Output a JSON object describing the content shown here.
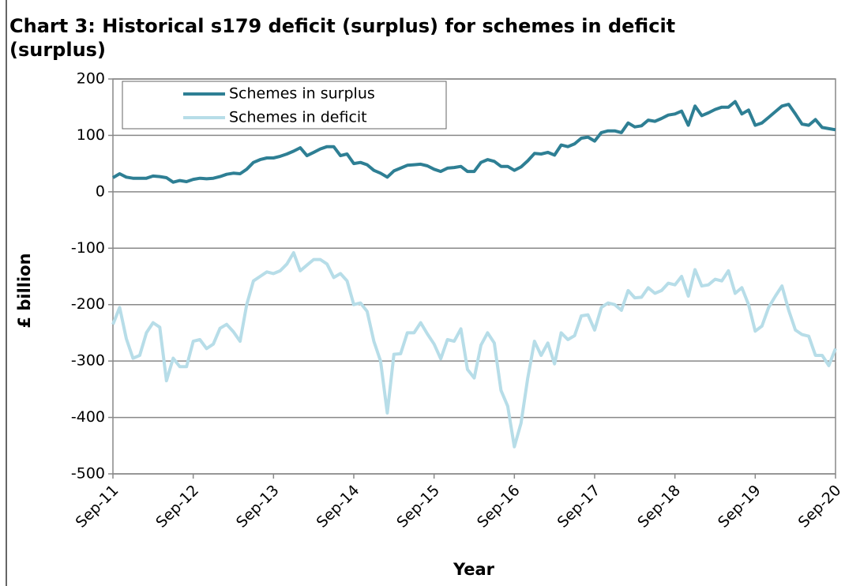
{
  "chart_data": {
    "type": "line",
    "title": "Chart 3: Historical s179 deficit (surplus) for schemes in deficit (surplus)",
    "x_label": "Year",
    "y_label": "£ billion",
    "categories": [
      "Sep-11",
      null,
      null,
      null,
      null,
      null,
      null,
      null,
      null,
      null,
      null,
      null,
      "Sep-12",
      null,
      null,
      null,
      null,
      null,
      null,
      null,
      null,
      null,
      null,
      null,
      "Sep-13",
      null,
      null,
      null,
      null,
      null,
      null,
      null,
      null,
      null,
      null,
      null,
      "Sep-14",
      null,
      null,
      null,
      null,
      null,
      null,
      null,
      null,
      null,
      null,
      null,
      "Sep-15",
      null,
      null,
      null,
      null,
      null,
      null,
      null,
      null,
      null,
      null,
      null,
      "Sep-16",
      null,
      null,
      null,
      null,
      null,
      null,
      null,
      null,
      null,
      null,
      null,
      "Sep-17",
      null,
      null,
      null,
      null,
      null,
      null,
      null,
      null,
      null,
      null,
      null,
      "Sep-18",
      null,
      null,
      null,
      null,
      null,
      null,
      null,
      null,
      null,
      null,
      null,
      "Sep-19",
      null,
      null,
      null,
      null,
      null,
      null,
      null,
      null,
      null,
      null,
      null,
      "Sep-20"
    ],
    "series": [
      {
        "name": "Schemes in surplus",
        "color": "#2e7f94",
        "values": [
          25,
          32,
          26,
          24,
          24,
          24,
          28,
          27,
          25,
          17,
          20,
          18,
          22,
          24,
          23,
          24,
          27,
          31,
          33,
          32,
          40,
          52,
          57,
          60,
          60,
          63,
          67,
          72,
          78,
          64,
          70,
          76,
          80,
          80,
          64,
          67,
          50,
          52,
          48,
          38,
          33,
          26,
          37,
          42,
          47,
          48,
          49,
          46,
          40,
          36,
          42,
          43,
          45,
          36,
          36,
          52,
          57,
          54,
          45,
          45,
          38,
          44,
          55,
          68,
          67,
          70,
          65,
          83,
          80,
          85,
          95,
          97,
          90,
          105,
          108,
          108,
          105,
          122,
          115,
          117,
          127,
          125,
          130,
          136,
          138,
          143,
          118,
          152,
          135,
          140,
          146,
          150,
          150,
          160,
          138,
          145,
          118,
          122,
          132,
          142,
          152,
          155,
          138,
          120,
          118,
          128,
          114,
          112,
          110
        ]
      },
      {
        "name": "Schemes in deficit",
        "color": "#b7dde8",
        "values": [
          -235,
          -205,
          -260,
          -295,
          -290,
          -250,
          -232,
          -240,
          -335,
          -295,
          -310,
          -310,
          -265,
          -262,
          -278,
          -270,
          -242,
          -235,
          -248,
          -265,
          -200,
          -158,
          -150,
          -142,
          -145,
          -140,
          -128,
          -108,
          -140,
          -130,
          -120,
          -120,
          -128,
          -152,
          -145,
          -158,
          -200,
          -197,
          -212,
          -265,
          -300,
          -392,
          -288,
          -287,
          -250,
          -250,
          -232,
          -252,
          -270,
          -296,
          -262,
          -265,
          -243,
          -315,
          -330,
          -272,
          -250,
          -268,
          -352,
          -380,
          -452,
          -410,
          -330,
          -265,
          -290,
          -268,
          -305,
          -250,
          -262,
          -255,
          -220,
          -218,
          -245,
          -205,
          -197,
          -200,
          -210,
          -175,
          -188,
          -187,
          -170,
          -180,
          -175,
          -162,
          -165,
          -150,
          -185,
          -138,
          -167,
          -165,
          -155,
          -158,
          -140,
          -180,
          -170,
          -200,
          -247,
          -238,
          -205,
          -185,
          -167,
          -210,
          -245,
          -253,
          -256,
          -290,
          -290,
          -308,
          -278
        ]
      }
    ],
    "ylim": [
      -500,
      200
    ],
    "yticks": [
      -500,
      -400,
      -300,
      -200,
      -100,
      0,
      100,
      200
    ],
    "grid": true,
    "legend": "upper left"
  }
}
